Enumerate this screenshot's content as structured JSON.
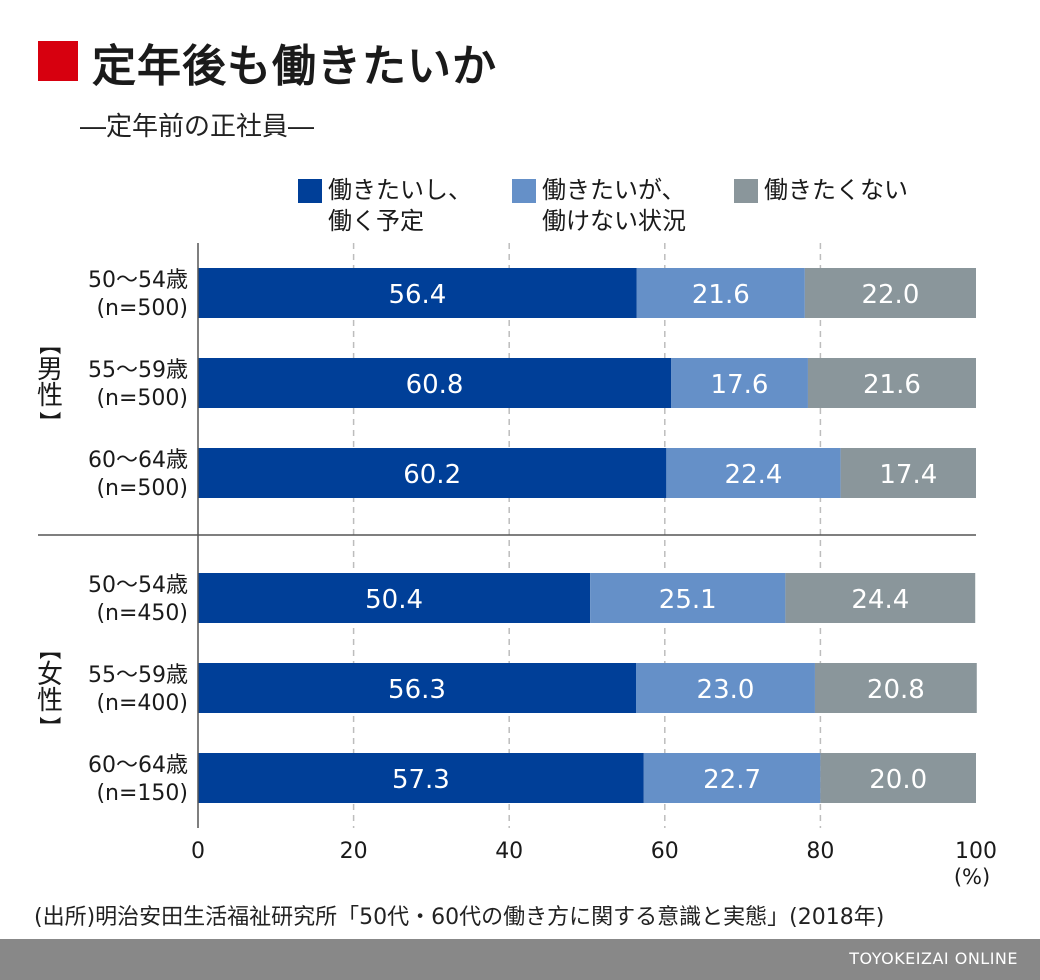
{
  "header": {
    "title": "定年後も働きたいか",
    "subtitle": "―定年前の正社員―"
  },
  "legend": [
    {
      "label": "働きたいし、\n働く予定",
      "color": "#003f98"
    },
    {
      "label": "働きたいが、\n働けない状況",
      "color": "#6590c8"
    },
    {
      "label": "働きたくない",
      "color": "#8a969b"
    }
  ],
  "chart_data": {
    "type": "bar",
    "orientation": "horizontal",
    "stacked": true,
    "groups": [
      {
        "label": "【男性】",
        "rows": [
          {
            "label": "50〜54歳",
            "n": "(n=500)",
            "values": [
              56.4,
              21.6,
              22.0
            ]
          },
          {
            "label": "55〜59歳",
            "n": "(n=500)",
            "values": [
              60.8,
              17.6,
              21.6
            ]
          },
          {
            "label": "60〜64歳",
            "n": "(n=500)",
            "values": [
              60.2,
              22.4,
              17.4
            ]
          }
        ]
      },
      {
        "label": "【女性】",
        "rows": [
          {
            "label": "50〜54歳",
            "n": "(n=450)",
            "values": [
              50.4,
              25.1,
              24.4
            ]
          },
          {
            "label": "55〜59歳",
            "n": "(n=400)",
            "values": [
              56.3,
              23.0,
              20.8
            ]
          },
          {
            "label": "60〜64歳",
            "n": "(n=150)",
            "values": [
              57.3,
              22.7,
              20.0
            ]
          }
        ]
      }
    ],
    "series": [
      {
        "name": "働きたいし、働く予定",
        "color": "#003f98"
      },
      {
        "name": "働きたいが、働けない状況",
        "color": "#6590c8"
      },
      {
        "name": "働きたくない",
        "color": "#8a969b"
      }
    ],
    "xlim": [
      0,
      100
    ],
    "xticks": [
      "0",
      "20",
      "40",
      "60",
      "80",
      "100"
    ],
    "unit": "(%)",
    "grid": "dashed vertical",
    "legend_placement": "top"
  },
  "source": "(出所)明治安田生活福祉研究所「50代・60代の働き方に関する意識と実態」(2018年)",
  "footer": "TOYOKEIZAI ONLINE"
}
